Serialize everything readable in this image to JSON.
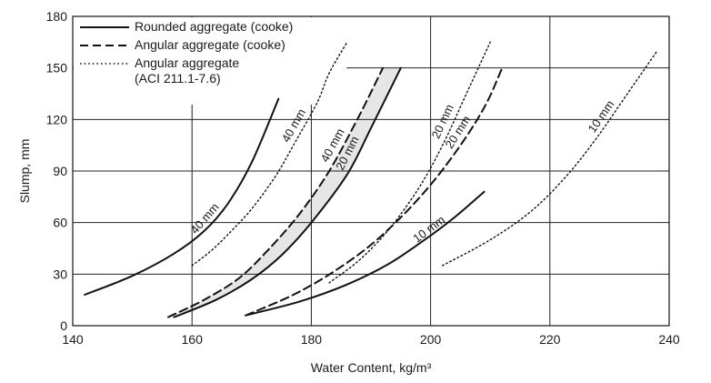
{
  "chart_data": {
    "type": "line",
    "xlabel": "Water Content, kg/m³",
    "ylabel": "Slump, mm",
    "xlim": [
      140,
      240
    ],
    "ylim": [
      0,
      180
    ],
    "x_ticks": [
      140,
      160,
      180,
      200,
      220,
      240
    ],
    "y_ticks": [
      0,
      30,
      60,
      90,
      120,
      150,
      180
    ],
    "grid": true,
    "legend_position": "top-left",
    "legend": [
      {
        "style": "solid",
        "lines": [
          "Rounded aggregate (cooke)"
        ]
      },
      {
        "style": "dashed",
        "lines": [
          "Angular aggregate (cooke)"
        ]
      },
      {
        "style": "dotted",
        "lines": [
          "Angular aggregate",
          "(ACI 211.1-7.6)"
        ]
      }
    ],
    "series": [
      {
        "style": "solid",
        "label": "40 mm",
        "x": [
          142,
          150,
          157,
          162,
          166,
          170,
          174.5
        ],
        "y": [
          18,
          29,
          42,
          55,
          71,
          95,
          132
        ]
      },
      {
        "style": "solid",
        "label": "20 mm",
        "x": [
          157,
          164,
          170,
          175,
          180,
          186,
          190,
          195
        ],
        "y": [
          5,
          15,
          27,
          41,
          60,
          88,
          115,
          150
        ]
      },
      {
        "style": "solid",
        "label": "10 mm",
        "x": [
          169,
          178,
          186,
          193,
          199,
          204,
          209
        ],
        "y": [
          6,
          14,
          24,
          36,
          50,
          63,
          78
        ]
      },
      {
        "style": "dashed",
        "label": "40 mm",
        "x": [
          156,
          162,
          168,
          173,
          178,
          183,
          188,
          192
        ],
        "y": [
          5,
          15,
          28,
          45,
          65,
          90,
          122,
          150
        ]
      },
      {
        "style": "dashed",
        "label": "20 mm",
        "x": [
          169,
          177,
          184,
          191,
          198,
          204,
          209,
          212
        ],
        "y": [
          6,
          18,
          32,
          50,
          74,
          100,
          127,
          150
        ]
      },
      {
        "style": "dotted",
        "label": "40 mm",
        "x": [
          160,
          163,
          166,
          170,
          174,
          177,
          181,
          183,
          186
        ],
        "y": [
          35,
          43,
          53,
          68,
          87,
          105,
          130,
          147,
          165
        ]
      },
      {
        "style": "dotted",
        "label": "20 mm",
        "x": [
          183,
          188,
          193,
          198,
          202,
          206,
          210
        ],
        "y": [
          25,
          38,
          56,
          80,
          105,
          135,
          165
        ]
      },
      {
        "style": "dotted",
        "label": "10 mm",
        "x": [
          202,
          210,
          217,
          223,
          228,
          233,
          238
        ],
        "y": [
          35,
          50,
          67,
          88,
          110,
          135,
          160
        ]
      }
    ]
  }
}
